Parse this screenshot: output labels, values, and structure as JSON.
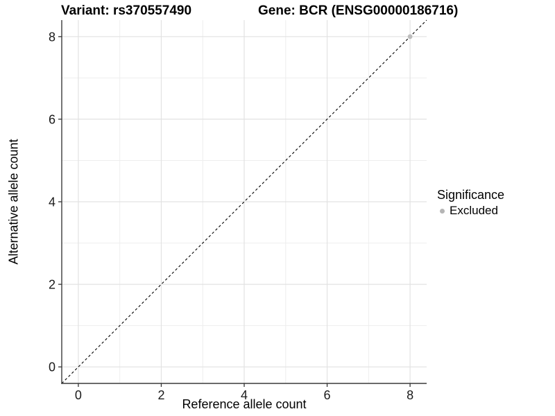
{
  "titles": {
    "variant": "Variant: rs370557490",
    "gene": "Gene: BCR (ENSG00000186716)"
  },
  "legend": {
    "title": "Significance",
    "items": [
      {
        "label": "Excluded",
        "marker": "circle-icon",
        "color": "#b5b5b5"
      }
    ]
  },
  "colors": {
    "background": "#ffffff",
    "grid_major": "#e2e2e2",
    "grid_minor": "#eeeeee",
    "axis_line": "#3a3a3a",
    "tick_mark": "#333333",
    "tick_label": "#1a1a1a",
    "identity_line": "#000000",
    "point": "#bdbdbd"
  },
  "chart_data": {
    "type": "scatter",
    "title": "Variant: rs370557490 | Gene: BCR (ENSG00000186716)",
    "xlabel": "Reference allele count",
    "ylabel": "Alternative allele count",
    "xlim": [
      -0.4,
      8.4
    ],
    "ylim": [
      -0.4,
      8.4
    ],
    "x_ticks": [
      0,
      2,
      4,
      6,
      8
    ],
    "y_ticks": [
      0,
      2,
      4,
      6,
      8
    ],
    "x_minor_ticks": [
      1,
      3,
      5,
      7
    ],
    "y_minor_ticks": [
      1,
      3,
      5,
      7
    ],
    "grid": true,
    "legend_position": "right",
    "series": [
      {
        "name": "Excluded",
        "marker": "circle",
        "color": "#bdbdbd",
        "points": [
          {
            "x": 8,
            "y": 8
          }
        ]
      }
    ],
    "reference_line": {
      "kind": "identity",
      "slope": 1,
      "intercept": 0,
      "style": "dashed",
      "color": "#000000"
    }
  }
}
